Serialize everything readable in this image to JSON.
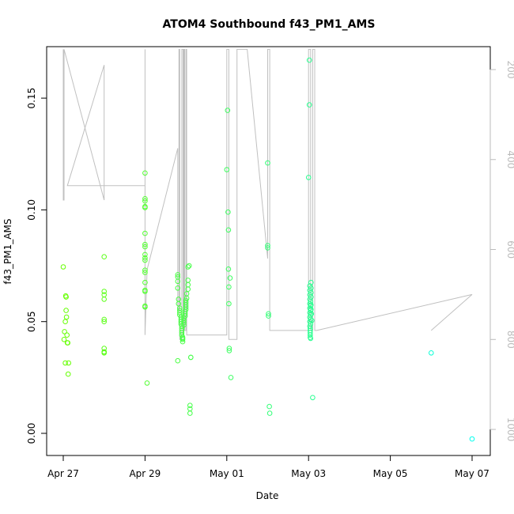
{
  "chart_data": {
    "type": "scatter",
    "title": "ATOM4 Southbound f43_PM1_AMS",
    "xlabel": "Date",
    "ylabel": "f43_PM1_AMS",
    "x_ticks": [
      "Apr 27",
      "Apr 29",
      "May 01",
      "May 03",
      "May 05",
      "May 07"
    ],
    "x_tick_values": [
      0,
      2,
      4,
      6,
      8,
      10
    ],
    "xlim": [
      -0.35,
      10.4
    ],
    "y_ticks": [
      "0.00",
      "0.05",
      "0.10",
      "0.15"
    ],
    "y_tick_values": [
      0.0,
      0.05,
      0.1,
      0.15
    ],
    "ylim": [
      -0.01,
      0.173
    ],
    "right_axis": {
      "ticks": [
        "200",
        "400",
        "600",
        "800",
        "1000"
      ],
      "tick_values": [
        200,
        400,
        600,
        800,
        1000
      ],
      "range_top": 155,
      "range_bottom": 1060,
      "color": "#bbbbbb"
    },
    "series": [
      {
        "marker": "circle",
        "color_start": "#66ff00",
        "color_end": "#00ffee",
        "x": [
          0.0,
          0.02,
          0.03,
          0.05,
          0.05,
          0.06,
          0.07,
          0.07,
          0.08,
          0.09,
          0.1,
          0.11,
          0.12,
          0.13,
          1.0,
          1.0,
          1.0,
          1.0,
          1.0,
          1.0,
          1.0,
          1.0,
          1.0,
          1.0,
          2.0,
          2.0,
          2.0,
          2.0,
          2.0,
          2.0,
          2.0,
          2.0,
          2.0,
          2.0,
          2.0,
          2.0,
          2.0,
          2.0,
          2.0,
          2.0,
          2.0,
          2.0,
          2.05,
          2.8,
          2.8,
          2.8,
          2.8,
          2.8,
          2.82,
          2.82,
          2.85,
          2.85,
          2.85,
          2.85,
          2.88,
          2.88,
          2.88,
          2.88,
          2.9,
          2.9,
          2.9,
          2.9,
          2.9,
          2.92,
          2.92,
          2.92,
          2.92,
          2.95,
          2.95,
          2.95,
          2.95,
          2.98,
          2.98,
          2.98,
          3.0,
          3.0,
          3.0,
          3.0,
          3.0,
          3.02,
          3.02,
          3.05,
          3.05,
          3.05,
          3.05,
          3.08,
          3.1,
          3.1,
          3.1,
          3.12,
          3.12,
          4.0,
          4.02,
          4.03,
          4.04,
          4.04,
          4.05,
          4.05,
          4.06,
          4.06,
          4.08,
          4.1,
          5.0,
          5.0,
          5.0,
          5.02,
          5.02,
          5.04,
          5.05,
          6.0,
          6.02,
          6.02,
          6.03,
          6.03,
          6.03,
          6.03,
          6.03,
          6.03,
          6.03,
          6.03,
          6.03,
          6.03,
          6.04,
          6.04,
          6.04,
          6.04,
          6.04,
          6.05,
          6.05,
          6.05,
          6.05,
          6.05,
          6.05,
          6.05,
          6.06,
          6.06,
          6.06,
          6.06,
          6.06,
          6.06,
          6.07,
          6.08,
          6.1,
          9.0,
          10.0
        ],
        "y": [
          0.0745,
          0.042,
          0.0455,
          0.05,
          0.0315,
          0.0615,
          0.061,
          0.055,
          0.052,
          0.044,
          0.0405,
          0.0405,
          0.0265,
          0.0315,
          0.079,
          0.0635,
          0.062,
          0.06,
          0.051,
          0.05,
          0.038,
          0.0365,
          0.036,
          0.0365,
          0.1165,
          0.105,
          0.104,
          0.1015,
          0.101,
          0.0895,
          0.0845,
          0.0835,
          0.08,
          0.0785,
          0.0775,
          0.073,
          0.072,
          0.0675,
          0.064,
          0.0635,
          0.057,
          0.0565,
          0.0225,
          0.071,
          0.07,
          0.068,
          0.065,
          0.0325,
          0.06,
          0.058,
          0.056,
          0.055,
          0.054,
          0.053,
          0.052,
          0.051,
          0.05,
          0.049,
          0.048,
          0.047,
          0.046,
          0.045,
          0.044,
          0.043,
          0.0425,
          0.042,
          0.041,
          0.0485,
          0.0495,
          0.0505,
          0.0515,
          0.0525,
          0.0535,
          0.0545,
          0.0555,
          0.0565,
          0.0575,
          0.0585,
          0.0595,
          0.0605,
          0.0625,
          0.0645,
          0.0665,
          0.0685,
          0.0745,
          0.075,
          0.0125,
          0.011,
          0.009,
          0.034,
          0.034,
          0.118,
          0.1445,
          0.099,
          0.091,
          0.0735,
          0.0655,
          0.058,
          0.038,
          0.037,
          0.0695,
          0.025,
          0.121,
          0.084,
          0.083,
          0.0535,
          0.0525,
          0.012,
          0.009,
          0.1145,
          0.147,
          0.167,
          0.066,
          0.064,
          0.062,
          0.06,
          0.058,
          0.056,
          0.054,
          0.052,
          0.05,
          0.048,
          0.047,
          0.046,
          0.045,
          0.044,
          0.043,
          0.0425,
          0.049,
          0.051,
          0.053,
          0.055,
          0.057,
          0.059,
          0.061,
          0.063,
          0.065,
          0.0675,
          0.0575,
          0.0555,
          0.0535,
          0.0505,
          0.016,
          0.036,
          -0.0025
        ]
      },
      {
        "type": "line",
        "axis": "right",
        "color": "#c0c0c0",
        "x": [
          0.0,
          0.0,
          0.02,
          0.02,
          1.0,
          1.0,
          1.0,
          0.1,
          2.0,
          2.0,
          2.0,
          2.05,
          2.8,
          2.8,
          2.83,
          2.83,
          2.85,
          2.85,
          2.9,
          2.9,
          2.93,
          2.93,
          2.95,
          2.95,
          2.97,
          2.97,
          3.0,
          3.0,
          3.02,
          3.02,
          4.0,
          4.0,
          4.05,
          4.05,
          4.25,
          4.25,
          4.5,
          5.0,
          5.0,
          5.0,
          5.05,
          5.05,
          6.0,
          6.0,
          6.05,
          6.05,
          6.1,
          6.1,
          6.15,
          6.15,
          6.2,
          10.0,
          9.0
        ],
        "y": [
          155,
          490,
          490,
          155,
          490,
          490,
          190,
          458,
          458,
          155,
          790,
          645,
          375,
          735,
          735,
          155,
          155,
          800,
          800,
          155,
          155,
          790,
          790,
          155,
          155,
          780,
          780,
          155,
          155,
          790,
          790,
          155,
          155,
          800,
          800,
          155,
          155,
          620,
          620,
          155,
          155,
          780,
          780,
          155,
          155,
          780,
          780,
          155,
          155,
          780,
          780,
          700,
          780
        ]
      }
    ]
  }
}
